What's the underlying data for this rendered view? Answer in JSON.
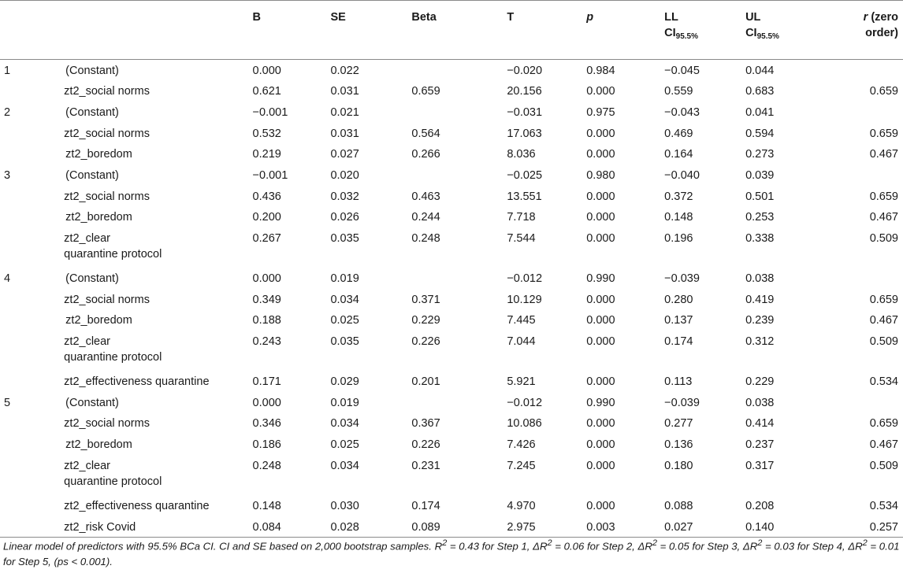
{
  "headers": {
    "b": "B",
    "se": "SE",
    "beta": "Beta",
    "t": "T",
    "p": "p",
    "ll_line1": "LL",
    "ll_line2": "CI",
    "ll_sub": "95.5%",
    "ul_line1": "UL",
    "ul_line2": "CI",
    "ul_sub": "95.5%",
    "r_line1": "r",
    "r_line1_rest": " (zero",
    "r_line2": "order)"
  },
  "rows": [
    {
      "step": "1",
      "pred": "(Constant)",
      "b": "0.000",
      "se": "0.022",
      "beta": "",
      "t": "−0.020",
      "p": "0.984",
      "ll": "−0.045",
      "ul": "0.044",
      "r": ""
    },
    {
      "step": "",
      "pred": "zt2_social norms",
      "b": "0.621",
      "se": "0.031",
      "beta": "0.659",
      "t": "20.156",
      "p": "0.000",
      "ll": "0.559",
      "ul": "0.683",
      "r": "0.659"
    },
    {
      "step": "2",
      "pred": "(Constant)",
      "b": "−0.001",
      "se": "0.021",
      "beta": "",
      "t": "−0.031",
      "p": "0.975",
      "ll": "−0.043",
      "ul": "0.041",
      "r": ""
    },
    {
      "step": "",
      "pred": "zt2_social norms",
      "b": "0.532",
      "se": "0.031",
      "beta": "0.564",
      "t": "17.063",
      "p": "0.000",
      "ll": "0.469",
      "ul": "0.594",
      "r": "0.659"
    },
    {
      "step": "",
      "pred": "zt2_boredom",
      "b": "0.219",
      "se": "0.027",
      "beta": "0.266",
      "t": "8.036",
      "p": "0.000",
      "ll": "0.164",
      "ul": "0.273",
      "r": "0.467"
    },
    {
      "step": "3",
      "pred": "(Constant)",
      "b": "−0.001",
      "se": "0.020",
      "beta": "",
      "t": "−0.025",
      "p": "0.980",
      "ll": "−0.040",
      "ul": "0.039",
      "r": ""
    },
    {
      "step": "",
      "pred": "zt2_social norms",
      "b": "0.436",
      "se": "0.032",
      "beta": "0.463",
      "t": "13.551",
      "p": "0.000",
      "ll": "0.372",
      "ul": "0.501",
      "r": "0.659"
    },
    {
      "step": "",
      "pred": "zt2_boredom",
      "b": "0.200",
      "se": "0.026",
      "beta": "0.244",
      "t": "7.718",
      "p": "0.000",
      "ll": "0.148",
      "ul": "0.253",
      "r": "0.467"
    },
    {
      "step": "",
      "pred": "zt2_clear",
      "pred2": "quarantine protocol",
      "b": "0.267",
      "se": "0.035",
      "beta": "0.248",
      "t": "7.544",
      "p": "0.000",
      "ll": "0.196",
      "ul": "0.338",
      "r": "0.509"
    },
    {
      "step": "4",
      "pred": "(Constant)",
      "b": "0.000",
      "se": "0.019",
      "beta": "",
      "t": "−0.012",
      "p": "0.990",
      "ll": "−0.039",
      "ul": "0.038",
      "r": ""
    },
    {
      "step": "",
      "pred": "zt2_social norms",
      "b": "0.349",
      "se": "0.034",
      "beta": "0.371",
      "t": "10.129",
      "p": "0.000",
      "ll": "0.280",
      "ul": "0.419",
      "r": "0.659"
    },
    {
      "step": "",
      "pred": "zt2_boredom",
      "b": "0.188",
      "se": "0.025",
      "beta": "0.229",
      "t": "7.445",
      "p": "0.000",
      "ll": "0.137",
      "ul": "0.239",
      "r": "0.467"
    },
    {
      "step": "",
      "pred": "zt2_clear",
      "pred2": "quarantine protocol",
      "b": "0.243",
      "se": "0.035",
      "beta": "0.226",
      "t": "7.044",
      "p": "0.000",
      "ll": "0.174",
      "ul": "0.312",
      "r": "0.509"
    },
    {
      "step": "",
      "pred": "zt2_effectiveness quarantine",
      "b": "0.171",
      "se": "0.029",
      "beta": "0.201",
      "t": "5.921",
      "p": "0.000",
      "ll": "0.113",
      "ul": "0.229",
      "r": "0.534"
    },
    {
      "step": "5",
      "pred": "(Constant)",
      "b": "0.000",
      "se": "0.019",
      "beta": "",
      "t": "−0.012",
      "p": "0.990",
      "ll": "−0.039",
      "ul": "0.038",
      "r": ""
    },
    {
      "step": "",
      "pred": "zt2_social norms",
      "b": "0.346",
      "se": "0.034",
      "beta": "0.367",
      "t": "10.086",
      "p": "0.000",
      "ll": "0.277",
      "ul": "0.414",
      "r": "0.659"
    },
    {
      "step": "",
      "pred": "zt2_boredom",
      "b": "0.186",
      "se": "0.025",
      "beta": "0.226",
      "t": "7.426",
      "p": "0.000",
      "ll": "0.136",
      "ul": "0.237",
      "r": "0.467"
    },
    {
      "step": "",
      "pred": "zt2_clear",
      "pred2": "quarantine protocol",
      "b": "0.248",
      "se": "0.034",
      "beta": "0.231",
      "t": "7.245",
      "p": "0.000",
      "ll": "0.180",
      "ul": "0.317",
      "r": "0.509"
    },
    {
      "step": "",
      "pred": "zt2_effectiveness quarantine",
      "b": "0.148",
      "se": "0.030",
      "beta": "0.174",
      "t": "4.970",
      "p": "0.000",
      "ll": "0.088",
      "ul": "0.208",
      "r": "0.534"
    },
    {
      "step": "",
      "pred": "zt2_risk Covid",
      "b": "0.084",
      "se": "0.028",
      "beta": "0.089",
      "t": "2.975",
      "p": "0.003",
      "ll": "0.027",
      "ul": "0.140",
      "r": "0.257"
    }
  ],
  "note": {
    "part1": "Linear model of predictors with 95.5% BCa CI. CI and SE based on 2,000 bootstrap samples. R",
    "sup1": "2",
    "part2": " = 0.43 for Step 1, ΔR",
    "sup2": "2",
    "part3": " = 0.06 for Step 2, ΔR",
    "sup3": "2",
    "part4": " = 0.05 for Step 3, ΔR",
    "sup4": "2",
    "part5": " = 0.03 for Step 4, ΔR",
    "sup5": "2",
    "part6": " = 0.01 for Step 5, (ps < 0.001)."
  }
}
